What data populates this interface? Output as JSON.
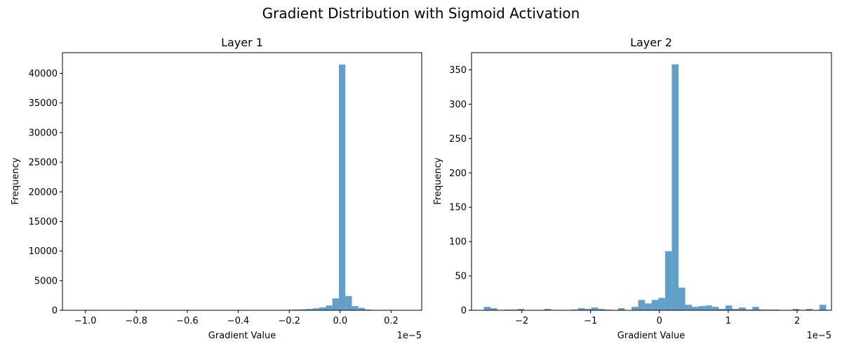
{
  "figure": {
    "title": "Gradient Distribution with Sigmoid Activation"
  },
  "chart_data": [
    {
      "type": "bar",
      "title": "Layer 1",
      "xlabel": "Gradient Value",
      "ylabel": "Frequency",
      "x_offset_label": "1e−5",
      "bar_color": "#1f77b4",
      "bar_opacity": 0.7,
      "xlim": [
        -1.09,
        0.32
      ],
      "ylim": [
        0,
        43500
      ],
      "xticks": [
        -1.0,
        -0.8,
        -0.6,
        -0.4,
        -0.2,
        0.0,
        0.2
      ],
      "xtick_labels": [
        "−1.0",
        "−0.8",
        "−0.6",
        "−0.4",
        "−0.2",
        "0.0",
        "0.2"
      ],
      "yticks": [
        0,
        5000,
        10000,
        15000,
        20000,
        25000,
        30000,
        35000,
        40000
      ],
      "ytick_labels": [
        "0",
        "5000",
        "10000",
        "15000",
        "20000",
        "25000",
        "30000",
        "35000",
        "40000"
      ],
      "bin_start": -1.025,
      "bin_width": 0.0255,
      "values": [
        2,
        1,
        1,
        1,
        1,
        1,
        1,
        1,
        1,
        1,
        1,
        1,
        1,
        1,
        1,
        1,
        1,
        3,
        6,
        6,
        8,
        5,
        4,
        3,
        5,
        25,
        4,
        3,
        15,
        40,
        55,
        70,
        90,
        130,
        170,
        230,
        330,
        500,
        800,
        2000,
        41500,
        2400,
        700,
        400,
        120,
        50,
        40,
        30,
        25,
        20
      ]
    },
    {
      "type": "bar",
      "title": "Layer 2",
      "xlabel": "Gradient Value",
      "ylabel": "Frequency",
      "x_offset_label": "1e−5",
      "bar_color": "#1f77b4",
      "bar_opacity": 0.7,
      "xlim": [
        -2.73,
        2.5
      ],
      "ylim": [
        0,
        375
      ],
      "xticks": [
        -2,
        -1,
        0,
        1,
        2
      ],
      "xtick_labels": [
        "−2",
        "−1",
        "0",
        "1",
        "2"
      ],
      "yticks": [
        0,
        50,
        100,
        150,
        200,
        250,
        300,
        350
      ],
      "ytick_labels": [
        "0",
        "50",
        "100",
        "150",
        "200",
        "250",
        "300",
        "350"
      ],
      "bin_start": -2.55,
      "bin_width": 0.0975,
      "values": [
        5,
        3,
        0,
        1,
        1,
        2,
        0,
        0,
        0,
        2,
        0,
        0,
        0,
        1,
        3,
        2,
        4,
        2,
        1,
        0,
        3,
        0,
        5,
        15,
        10,
        15,
        18,
        86,
        358,
        33,
        8,
        5,
        6,
        7,
        5,
        2,
        7,
        2,
        4,
        1,
        5,
        1,
        1,
        1,
        0,
        0,
        2,
        0,
        2,
        0,
        8
      ]
    }
  ]
}
